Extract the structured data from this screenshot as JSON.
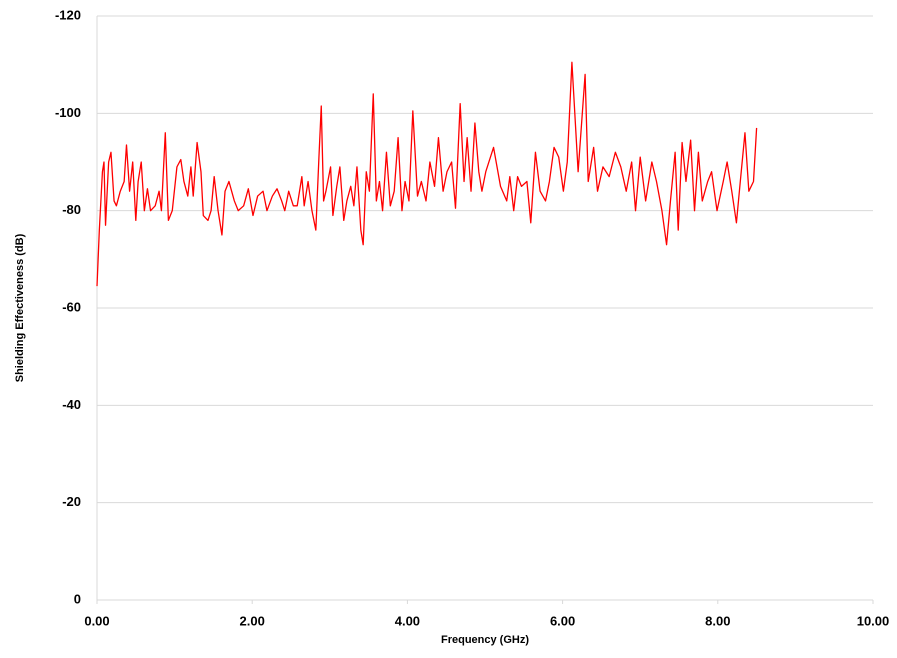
{
  "chart_data": {
    "type": "line",
    "x_label": "Frequency (GHz)",
    "y_label": "Shielding Effectiveness (dB)",
    "color": "#ff0000",
    "grid": true,
    "xlim": [
      0,
      10
    ],
    "xticks": [
      {
        "value": 0,
        "label": "0.00"
      },
      {
        "value": 2,
        "label": "2.00"
      },
      {
        "value": 4,
        "label": "4.00"
      },
      {
        "value": 6,
        "label": "6.00"
      },
      {
        "value": 8,
        "label": "8.00"
      },
      {
        "value": 10,
        "label": "10.00"
      }
    ],
    "ylim": [
      0,
      -120
    ],
    "yticks": [
      0,
      -20,
      -40,
      -60,
      -80,
      -100,
      -120
    ],
    "x": [
      0,
      0.03,
      0.07,
      0.09,
      0.11,
      0.15,
      0.18,
      0.22,
      0.25,
      0.3,
      0.35,
      0.38,
      0.42,
      0.46,
      0.5,
      0.53,
      0.57,
      0.61,
      0.65,
      0.69,
      0.75,
      0.8,
      0.83,
      0.88,
      0.92,
      0.97,
      1.03,
      1.08,
      1.12,
      1.17,
      1.21,
      1.24,
      1.29,
      1.34,
      1.37,
      1.43,
      1.47,
      1.51,
      1.56,
      1.61,
      1.65,
      1.7,
      1.77,
      1.82,
      1.89,
      1.95,
      2.01,
      2.07,
      2.14,
      2.19,
      2.26,
      2.32,
      2.38,
      2.42,
      2.47,
      2.53,
      2.58,
      2.64,
      2.67,
      2.72,
      2.77,
      2.82,
      2.86,
      2.89,
      2.92,
      2.95,
      3.01,
      3.04,
      3.09,
      3.13,
      3.18,
      3.22,
      3.27,
      3.31,
      3.35,
      3.4,
      3.43,
      3.47,
      3.51,
      3.56,
      3.6,
      3.64,
      3.68,
      3.73,
      3.78,
      3.83,
      3.88,
      3.93,
      3.97,
      4.02,
      4.07,
      4.13,
      4.18,
      4.24,
      4.29,
      4.35,
      4.4,
      4.46,
      4.51,
      4.57,
      4.62,
      4.68,
      4.73,
      4.77,
      4.82,
      4.87,
      4.92,
      4.96,
      5.01,
      5.11,
      5.2,
      5.28,
      5.32,
      5.37,
      5.42,
      5.47,
      5.54,
      5.59,
      5.65,
      5.71,
      5.78,
      5.83,
      5.89,
      5.95,
      6.01,
      6.06,
      6.12,
      6.2,
      6.29,
      6.33,
      6.4,
      6.45,
      6.52,
      6.6,
      6.68,
      6.75,
      6.82,
      6.89,
      6.94,
      7.0,
      7.07,
      7.15,
      7.21,
      7.28,
      7.34,
      7.39,
      7.45,
      7.49,
      7.54,
      7.59,
      7.65,
      7.7,
      7.75,
      7.8,
      7.87,
      7.92,
      7.99,
      8.07,
      8.12,
      8.18,
      8.24,
      8.29,
      8.35,
      8.4,
      8.46,
      8.5
    ],
    "values": [
      -64.5,
      -76,
      -88,
      -90,
      -77,
      -90,
      -92,
      -82,
      -81,
      -84,
      -86,
      -93.5,
      -84,
      -90,
      -78,
      -86,
      -90,
      -80,
      -84.5,
      -80,
      -81,
      -84,
      -80,
      -96,
      -78,
      -80,
      -89,
      -90.5,
      -86,
      -83,
      -89,
      -83,
      -94,
      -88,
      -79,
      -78,
      -80,
      -87,
      -80,
      -75,
      -84,
      -86,
      -82,
      -80,
      -81,
      -84.5,
      -79,
      -83,
      -84,
      -80,
      -83,
      -84.5,
      -82,
      -80,
      -84,
      -81,
      -81,
      -87,
      -81,
      -86,
      -80,
      -76,
      -91,
      -101.5,
      -82,
      -84,
      -89,
      -79,
      -85,
      -89,
      -78,
      -82,
      -85,
      -81,
      -89,
      -76,
      -73,
      -88,
      -84,
      -104,
      -82,
      -86,
      -80,
      -92,
      -81,
      -84,
      -95,
      -80,
      -86,
      -82,
      -100.5,
      -83,
      -86,
      -82,
      -90,
      -85,
      -95,
      -84,
      -88,
      -90,
      -80.5,
      -102,
      -86,
      -95,
      -84,
      -98,
      -88,
      -84,
      -88,
      -93,
      -85,
      -82,
      -87,
      -80,
      -87,
      -85,
      -86,
      -77.5,
      -92,
      -84,
      -82,
      -86,
      -93,
      -91,
      -84,
      -90,
      -110.5,
      -88,
      -108,
      -86,
      -93,
      -84,
      -89,
      -87,
      -92,
      -89,
      -84,
      -90,
      -80,
      -91,
      -82,
      -90,
      -86,
      -80,
      -73,
      -82,
      -92,
      -76,
      -94,
      -86,
      -94.5,
      -80,
      -92,
      -82,
      -86,
      -88,
      -80,
      -86,
      -90,
      -84,
      -77.5,
      -86,
      -96,
      -84,
      -86,
      -97
    ]
  }
}
